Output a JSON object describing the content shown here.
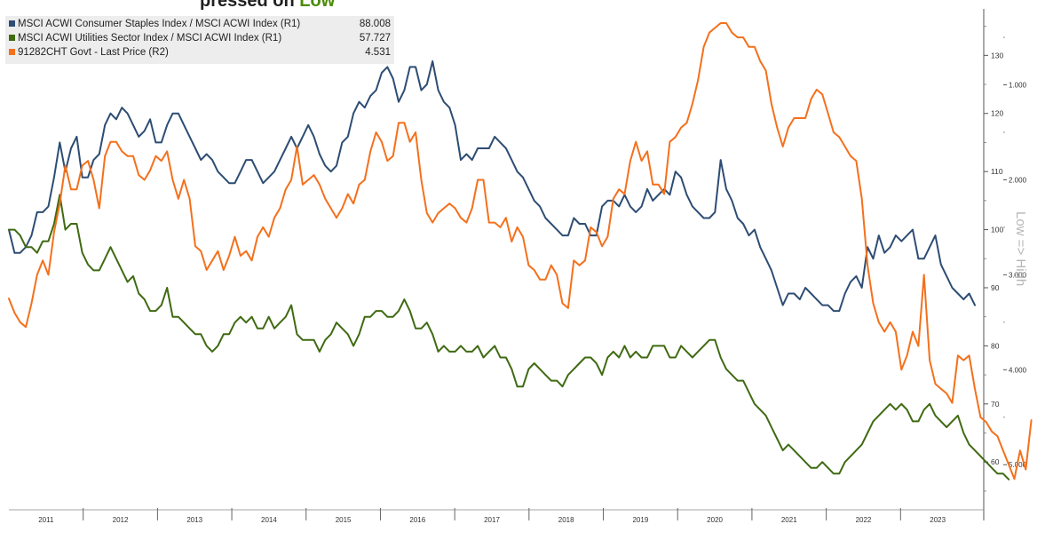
{
  "title_fragment": {
    "dark": "pres",
    "mid": "sed on ",
    "green": "Low",
    "tail": ""
  },
  "legend": [
    {
      "label": "MSCI ACWI Consumer Staples Index / MSCI ACWI Index (R1)",
      "value": "88.008",
      "color": "#2d4d73"
    },
    {
      "label": "MSCI ACWI Utilities Sector Index / MSCI ACWI Index (R1)",
      "value": "57.727",
      "color": "#3f6a12"
    },
    {
      "label": "91282CHT Govt - Last Price (R2)",
      "value": "4.531",
      "color": "#f4701c"
    }
  ],
  "axis_note": "Low => High",
  "chart_data": {
    "type": "line",
    "x_labels": [
      "2011",
      "2012",
      "2013",
      "2014",
      "2015",
      "2016",
      "2017",
      "2018",
      "2019",
      "2020",
      "2021",
      "2022",
      "2023"
    ],
    "r1_axis": {
      "ticks": [
        "130",
        "120",
        "110",
        "100",
        "90",
        "80",
        "70",
        "60"
      ],
      "range": [
        53,
        138
      ]
    },
    "r2_axis": {
      "ticks": [
        "1.000",
        "2.000",
        "3.000",
        "4.000",
        "5.000"
      ],
      "range": [
        0.2,
        5.4
      ],
      "inverted": true
    },
    "series": [
      {
        "name": "MSCI ACWI Consumer Staples Index / MSCI ACWI Index (R1)",
        "axis": "R1",
        "color": "#2d4d73",
        "values": [
          100,
          96,
          96,
          97,
          99,
          103,
          103,
          104,
          109,
          115,
          110,
          114,
          116,
          109,
          109,
          112,
          113,
          118,
          120,
          119,
          121,
          120,
          118,
          116,
          117,
          119,
          115,
          115,
          118,
          120,
          120,
          118,
          116,
          114,
          112,
          113,
          112,
          110,
          109,
          108,
          108,
          110,
          112,
          112,
          110,
          108,
          109,
          110,
          112,
          114,
          116,
          114,
          116,
          118,
          116,
          113,
          111,
          110,
          111,
          115,
          116,
          120,
          122,
          121,
          123,
          124,
          127,
          128,
          126,
          122,
          124,
          128,
          128,
          124,
          125,
          129,
          124,
          122,
          121,
          118,
          112,
          113,
          112,
          114,
          114,
          114,
          116,
          115,
          114,
          112,
          110,
          109,
          107,
          105,
          104,
          102,
          101,
          100,
          99,
          99,
          102,
          101,
          101,
          99,
          99,
          104,
          105,
          105,
          104,
          106,
          104,
          103,
          104,
          107,
          105,
          106,
          107,
          106,
          110,
          109,
          106,
          104,
          103,
          102,
          102,
          103,
          112,
          107,
          105,
          102,
          101,
          99,
          100,
          97,
          95,
          93,
          90,
          87,
          89,
          89,
          88,
          90,
          89,
          88,
          87,
          87,
          86,
          86,
          89,
          91,
          92,
          90,
          97,
          95,
          99,
          96,
          97,
          99,
          98,
          99,
          100,
          95,
          95,
          97,
          99,
          94,
          92,
          90,
          89,
          88,
          89,
          87
        ]
      },
      {
        "name": "MSCI ACWI Utilities Sector Index / MSCI ACWI Index (R1)",
        "axis": "R1",
        "color": "#3f6a12",
        "values": [
          100,
          100,
          99,
          97,
          97,
          96,
          98,
          98,
          101,
          106,
          100,
          101,
          101,
          96,
          94,
          93,
          93,
          95,
          97,
          95,
          93,
          91,
          92,
          89,
          88,
          86,
          86,
          87,
          90,
          85,
          85,
          84,
          83,
          82,
          82,
          80,
          79,
          80,
          82,
          82,
          84,
          85,
          84,
          85,
          83,
          83,
          85,
          83,
          84,
          85,
          87,
          82,
          81,
          81,
          81,
          79,
          81,
          82,
          84,
          83,
          82,
          80,
          82,
          85,
          85,
          86,
          86,
          85,
          85,
          86,
          88,
          86,
          83,
          83,
          84,
          82,
          79,
          80,
          79,
          79,
          80,
          79,
          79,
          80,
          78,
          79,
          80,
          78,
          78,
          76,
          73,
          73,
          76,
          77,
          76,
          75,
          74,
          74,
          73,
          75,
          76,
          77,
          78,
          78,
          77,
          75,
          78,
          79,
          78,
          80,
          78,
          79,
          78,
          78,
          80,
          80,
          80,
          78,
          78,
          80,
          79,
          78,
          79,
          80,
          81,
          81,
          78,
          76,
          75,
          74,
          74,
          72,
          70,
          69,
          68,
          66,
          64,
          62,
          63,
          62,
          61,
          60,
          59,
          59,
          60,
          59,
          58,
          58,
          60,
          61,
          62,
          63,
          65,
          67,
          68,
          69,
          70,
          69,
          70,
          69,
          67,
          67,
          69,
          70,
          68,
          67,
          66,
          67,
          68,
          65,
          63,
          62,
          61,
          60,
          59,
          58,
          58,
          57
        ]
      },
      {
        "name": "91282CHT Govt - Last Price (R2)",
        "axis": "R2",
        "color": "#f4701c",
        "values": [
          3.25,
          3.4,
          3.5,
          3.55,
          3.3,
          3.0,
          2.85,
          3.0,
          2.55,
          2.25,
          1.85,
          2.1,
          2.1,
          1.85,
          1.8,
          2.0,
          2.3,
          1.75,
          1.6,
          1.6,
          1.7,
          1.75,
          1.75,
          1.95,
          2.0,
          1.9,
          1.75,
          1.8,
          1.7,
          2.0,
          2.2,
          2.0,
          2.2,
          2.7,
          2.75,
          2.95,
          2.85,
          2.75,
          2.95,
          2.8,
          2.6,
          2.8,
          2.75,
          2.85,
          2.6,
          2.5,
          2.6,
          2.4,
          2.3,
          2.1,
          2.0,
          1.65,
          2.05,
          2.0,
          1.95,
          2.05,
          2.2,
          2.3,
          2.4,
          2.3,
          2.15,
          2.25,
          2.05,
          2.0,
          1.7,
          1.5,
          1.6,
          1.8,
          1.75,
          1.4,
          1.4,
          1.6,
          1.5,
          2.0,
          2.35,
          2.45,
          2.35,
          2.3,
          2.25,
          2.3,
          2.4,
          2.45,
          2.3,
          2.0,
          2.0,
          2.45,
          2.45,
          2.5,
          2.4,
          2.65,
          2.5,
          2.6,
          2.9,
          2.95,
          3.05,
          3.05,
          2.9,
          3.0,
          3.3,
          3.35,
          2.85,
          2.9,
          2.85,
          2.5,
          2.55,
          2.7,
          2.6,
          2.2,
          2.1,
          2.15,
          1.8,
          1.6,
          1.8,
          1.7,
          2.05,
          2.05,
          2.15,
          1.6,
          1.55,
          1.45,
          1.4,
          1.2,
          0.95,
          0.6,
          0.45,
          0.4,
          0.35,
          0.35,
          0.45,
          0.5,
          0.5,
          0.6,
          0.6,
          0.75,
          0.85,
          1.2,
          1.45,
          1.65,
          1.45,
          1.35,
          1.35,
          1.35,
          1.15,
          1.05,
          1.1,
          1.3,
          1.5,
          1.55,
          1.65,
          1.75,
          1.8,
          2.2,
          2.9,
          3.3,
          3.5,
          3.6,
          3.5,
          3.6,
          4.0,
          3.85,
          3.6,
          3.75,
          3.0,
          3.9,
          4.15,
          4.2,
          4.25,
          4.35,
          3.85,
          3.9,
          3.85,
          4.2,
          4.5,
          4.55,
          4.65,
          4.7,
          4.85,
          5.0,
          5.15,
          4.85,
          5.05,
          4.531
        ]
      }
    ]
  }
}
